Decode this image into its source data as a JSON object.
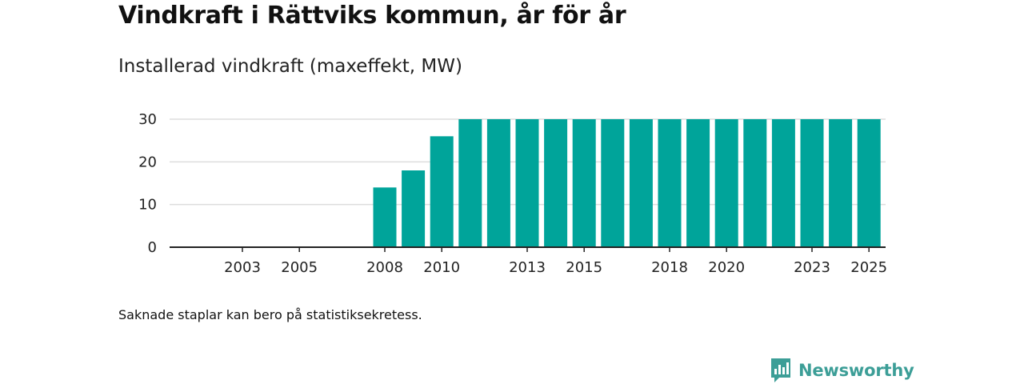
{
  "header": {
    "title": "Vindkraft i Rättviks kommun, år för år",
    "subtitle": "Installerad vindkraft (maxeffekt, MW)"
  },
  "note": "Saknade staplar kan bero på statistiksekretess.",
  "brand": {
    "name": "Newsworthy",
    "color": "#3c9e97",
    "icon": "newsworthy-logo-icon"
  },
  "colors": {
    "bar": "#00a49a",
    "grid": "#dddddd",
    "axis": "#222222"
  },
  "chart_data": {
    "type": "bar",
    "title": "Vindkraft i Rättviks kommun, år för år",
    "ylabel": "Installerad vindkraft (maxeffekt, MW)",
    "xlabel": "",
    "categories": [
      "2001",
      "2002",
      "2003",
      "2004",
      "2005",
      "2006",
      "2007",
      "2008",
      "2009",
      "2010",
      "2011",
      "2012",
      "2013",
      "2014",
      "2015",
      "2016",
      "2017",
      "2018",
      "2019",
      "2020",
      "2021",
      "2022",
      "2023",
      "2024",
      "2025"
    ],
    "values": [
      0,
      0,
      0,
      0,
      0,
      0,
      0,
      14,
      18,
      26,
      30,
      30,
      30,
      30,
      30,
      30,
      30,
      30,
      30,
      30,
      30,
      30,
      30,
      30,
      30
    ],
    "x_tick_labels": [
      "2003",
      "2005",
      "2008",
      "2010",
      "2013",
      "2015",
      "2018",
      "2020",
      "2023",
      "2025"
    ],
    "y_ticks": [
      0,
      10,
      20,
      30
    ],
    "ylim": [
      0,
      30
    ],
    "grid": true
  }
}
